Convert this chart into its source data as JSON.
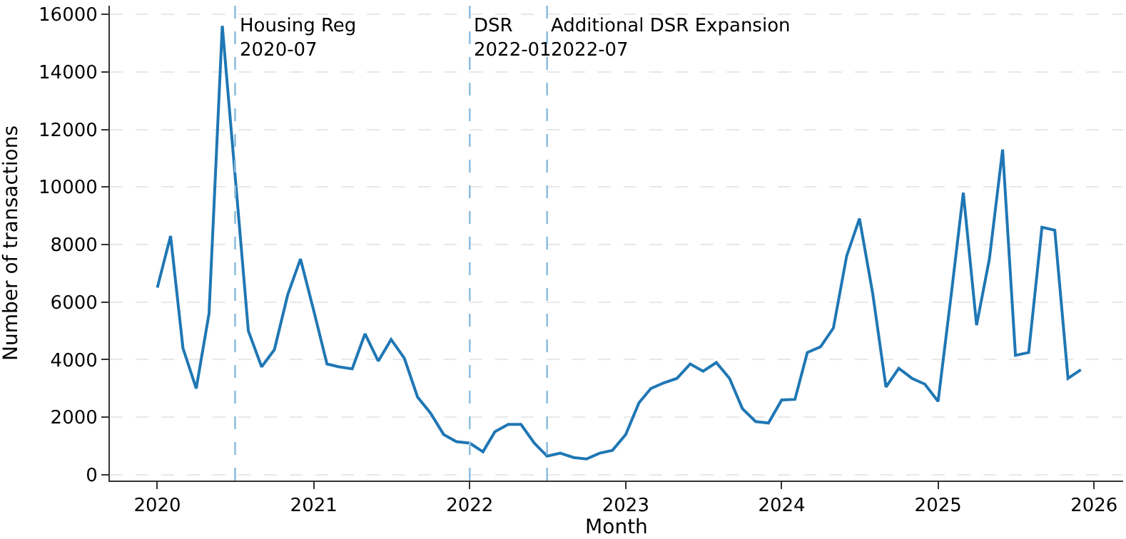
{
  "chart_data": {
    "type": "line",
    "xlabel": "Month",
    "ylabel": "Number of transactions",
    "x": [
      "2020-01",
      "2020-02",
      "2020-03",
      "2020-04",
      "2020-05",
      "2020-06",
      "2020-07",
      "2020-08",
      "2020-09",
      "2020-10",
      "2020-11",
      "2020-12",
      "2021-01",
      "2021-02",
      "2021-03",
      "2021-04",
      "2021-05",
      "2021-06",
      "2021-07",
      "2021-08",
      "2021-09",
      "2021-10",
      "2021-11",
      "2021-12",
      "2022-01",
      "2022-02",
      "2022-03",
      "2022-04",
      "2022-05",
      "2022-06",
      "2022-07",
      "2022-08",
      "2022-09",
      "2022-10",
      "2022-11",
      "2022-12",
      "2023-01",
      "2023-02",
      "2023-03",
      "2023-04",
      "2023-05",
      "2023-06",
      "2023-07",
      "2023-08",
      "2023-09",
      "2023-10",
      "2023-11",
      "2023-12",
      "2024-01",
      "2024-02",
      "2024-03",
      "2024-04",
      "2024-05",
      "2024-06",
      "2024-07",
      "2024-08",
      "2024-09",
      "2024-10",
      "2024-11",
      "2024-12",
      "2025-01",
      "2025-02",
      "2025-03",
      "2025-04",
      "2025-05",
      "2025-06",
      "2025-07",
      "2025-08",
      "2025-09",
      "2025-10",
      "2025-11",
      "2025-12"
    ],
    "series": [
      {
        "color": "#1f77b4",
        "values": [
          6500,
          8300,
          4400,
          3000,
          5600,
          15600,
          10400,
          5000,
          3750,
          4350,
          6250,
          7500,
          5700,
          3850,
          3750,
          3680,
          4900,
          3950,
          4700,
          4050,
          2700,
          2150,
          1400,
          1150,
          1100,
          800,
          1500,
          1750,
          1750,
          1100,
          650,
          750,
          600,
          550,
          750,
          850,
          1400,
          2500,
          3000,
          3200,
          3350,
          3850,
          3600,
          3900,
          3350,
          2300,
          1850,
          1800,
          2600,
          2620,
          4250,
          4450,
          5100,
          7600,
          8900,
          6300,
          3050,
          3700,
          3350,
          3150,
          2550,
          6300,
          9800,
          5200,
          7500,
          11300,
          4150,
          4250,
          8600,
          8500,
          3350,
          3650
        ]
      }
    ],
    "xlim": [
      "2019-09-12",
      "2026-03-10"
    ],
    "xticks": [
      "2020",
      "2021",
      "2022",
      "2023",
      "2024",
      "2025",
      "2026"
    ],
    "ylim": [
      -200,
      16300
    ],
    "yticks": [
      0,
      2000,
      4000,
      6000,
      8000,
      10000,
      12000,
      14000,
      16000
    ],
    "ref_lines": [
      {
        "axis": "x",
        "value": "2020-07",
        "label": "Housing Reg\n2020-07",
        "color": "#8fbfe0",
        "line_style": "dashed"
      },
      {
        "axis": "x",
        "value": "2022-01",
        "label": "DSR\n2022-01",
        "color": "#8fbfe0",
        "line_style": "dashed"
      },
      {
        "axis": "x",
        "value": "2022-07",
        "label": "Additional DSR Expansion\n2022-07",
        "color": "#8fbfe0",
        "line_style": "dashed"
      }
    ],
    "grid": "y",
    "marker": "none",
    "line_style": "solid"
  }
}
